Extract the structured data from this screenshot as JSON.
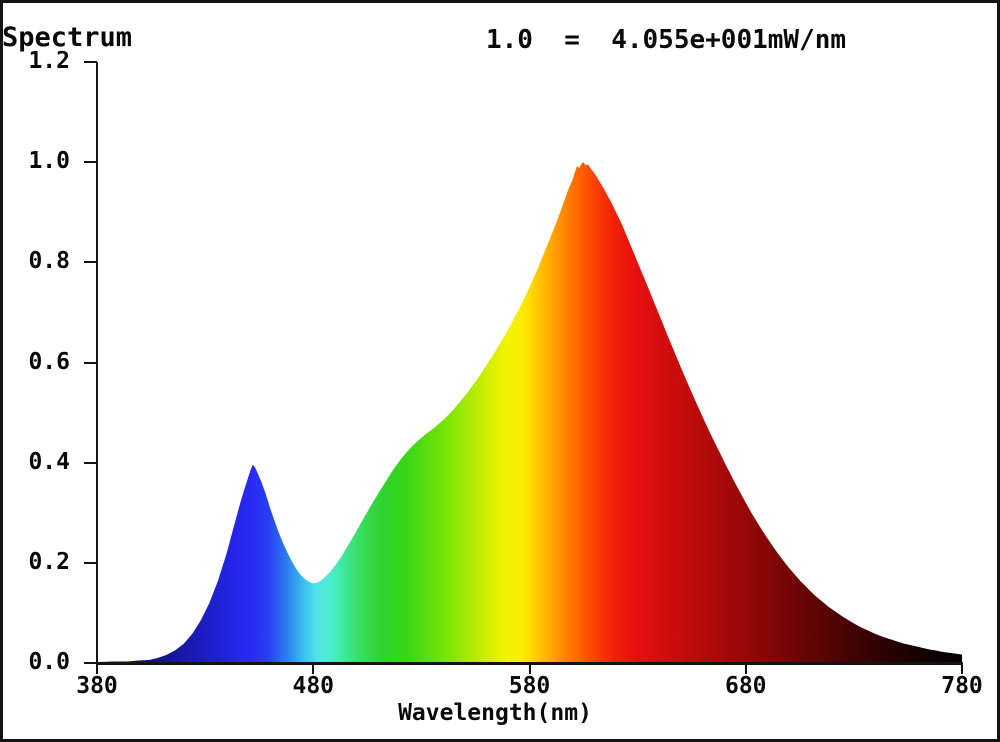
{
  "title": "Spectrum",
  "annotation": "1.0  =  4.055e+001mW/nm",
  "x_axis": {
    "label": "Wavelength(nm)"
  },
  "chart_data": {
    "type": "area",
    "title": "Spectrum",
    "xlabel": "Wavelength(nm)",
    "ylabel": "",
    "annotation": "1.0 = 4.055e+001mW/nm",
    "normalization_mw_per_nm": 40.55,
    "xlim": [
      380,
      780
    ],
    "ylim": [
      0,
      1.2
    ],
    "x_ticks": [
      380,
      480,
      580,
      680,
      780
    ],
    "y_ticks": [
      0,
      0.2,
      0.4,
      0.6,
      0.8,
      1.0,
      1.2
    ],
    "grid": false,
    "legend": false,
    "fill_style": "spectral-gradient-by-wavelength",
    "features": {
      "blue_peak": {
        "wavelength_nm": 451,
        "value": 0.4
      },
      "valley": {
        "wavelength_nm": 479,
        "value": 0.16
      },
      "main_peak": {
        "wavelength_nm": 604,
        "value": 1.0
      }
    },
    "gradient_stops": [
      [
        380,
        "#0b0b55"
      ],
      [
        398,
        "#10106e"
      ],
      [
        412,
        "#15158c"
      ],
      [
        424,
        "#1a1ab2"
      ],
      [
        434,
        "#1f1fd0"
      ],
      [
        444,
        "#2525ea"
      ],
      [
        452,
        "#2a2af4"
      ],
      [
        460,
        "#2842f2"
      ],
      [
        468,
        "#2e80f0"
      ],
      [
        476,
        "#3cc2ee"
      ],
      [
        482,
        "#54e4e8"
      ],
      [
        488,
        "#4aedcb"
      ],
      [
        495,
        "#3fe794"
      ],
      [
        503,
        "#38dc5a"
      ],
      [
        512,
        "#2fd32d"
      ],
      [
        522,
        "#36d617"
      ],
      [
        532,
        "#56dd0e"
      ],
      [
        542,
        "#7de407"
      ],
      [
        552,
        "#a9ea04"
      ],
      [
        562,
        "#d6f002"
      ],
      [
        570,
        "#f2f400"
      ],
      [
        577,
        "#fdea00"
      ],
      [
        584,
        "#ffc800"
      ],
      [
        591,
        "#ffa300"
      ],
      [
        598,
        "#ff7d00"
      ],
      [
        605,
        "#fd5900"
      ],
      [
        612,
        "#f93903"
      ],
      [
        619,
        "#f2200a"
      ],
      [
        627,
        "#e9120e"
      ],
      [
        637,
        "#da0e0e"
      ],
      [
        650,
        "#c60c0c"
      ],
      [
        663,
        "#b10a0a"
      ],
      [
        676,
        "#9c0808"
      ],
      [
        690,
        "#850606"
      ],
      [
        704,
        "#6c0505"
      ],
      [
        718,
        "#540404"
      ],
      [
        732,
        "#3d0303"
      ],
      [
        746,
        "#280202"
      ],
      [
        760,
        "#160101"
      ],
      [
        772,
        "#0b0000"
      ],
      [
        780,
        "#050000"
      ]
    ],
    "points": [
      [
        380,
        0.002
      ],
      [
        388,
        0.003
      ],
      [
        394,
        0.003
      ],
      [
        399,
        0.005
      ],
      [
        404,
        0.006
      ],
      [
        408,
        0.01
      ],
      [
        412,
        0.016
      ],
      [
        416,
        0.025
      ],
      [
        420,
        0.038
      ],
      [
        424,
        0.058
      ],
      [
        428,
        0.085
      ],
      [
        432,
        0.12
      ],
      [
        436,
        0.165
      ],
      [
        440,
        0.22
      ],
      [
        443,
        0.268
      ],
      [
        446,
        0.316
      ],
      [
        448,
        0.345
      ],
      [
        450,
        0.372
      ],
      [
        451,
        0.385
      ],
      [
        452,
        0.396
      ],
      [
        453,
        0.391
      ],
      [
        454,
        0.382
      ],
      [
        456,
        0.362
      ],
      [
        458,
        0.338
      ],
      [
        460,
        0.31
      ],
      [
        462,
        0.285
      ],
      [
        464,
        0.261
      ],
      [
        466,
        0.24
      ],
      [
        468,
        0.221
      ],
      [
        470,
        0.204
      ],
      [
        472,
        0.189
      ],
      [
        474,
        0.177
      ],
      [
        476,
        0.168
      ],
      [
        478,
        0.162
      ],
      [
        480,
        0.159
      ],
      [
        482,
        0.161
      ],
      [
        484,
        0.166
      ],
      [
        486,
        0.174
      ],
      [
        488,
        0.183
      ],
      [
        490,
        0.194
      ],
      [
        493,
        0.213
      ],
      [
        496,
        0.234
      ],
      [
        499,
        0.256
      ],
      [
        502,
        0.279
      ],
      [
        505,
        0.302
      ],
      [
        508,
        0.324
      ],
      [
        511,
        0.345
      ],
      [
        514,
        0.366
      ],
      [
        517,
        0.386
      ],
      [
        520,
        0.404
      ],
      [
        523,
        0.42
      ],
      [
        526,
        0.434
      ],
      [
        529,
        0.446
      ],
      [
        532,
        0.457
      ],
      [
        536,
        0.47
      ],
      [
        540,
        0.485
      ],
      [
        544,
        0.502
      ],
      [
        548,
        0.522
      ],
      [
        552,
        0.544
      ],
      [
        556,
        0.568
      ],
      [
        560,
        0.594
      ],
      [
        564,
        0.621
      ],
      [
        568,
        0.65
      ],
      [
        572,
        0.681
      ],
      [
        576,
        0.714
      ],
      [
        580,
        0.75
      ],
      [
        584,
        0.79
      ],
      [
        588,
        0.832
      ],
      [
        591,
        0.864
      ],
      [
        594,
        0.898
      ],
      [
        596,
        0.922
      ],
      [
        598,
        0.946
      ],
      [
        600,
        0.966
      ],
      [
        601,
        0.98
      ],
      [
        602,
        0.992
      ],
      [
        603,
        0.988
      ],
      [
        604,
        0.997
      ],
      [
        605,
        1.0
      ],
      [
        606,
        0.993
      ],
      [
        607,
        0.996
      ],
      [
        608,
        0.989
      ],
      [
        609,
        0.983
      ],
      [
        610,
        0.978
      ],
      [
        612,
        0.964
      ],
      [
        615,
        0.942
      ],
      [
        618,
        0.918
      ],
      [
        620,
        0.9
      ],
      [
        623,
        0.873
      ],
      [
        625,
        0.852
      ],
      [
        628,
        0.821
      ],
      [
        630,
        0.8
      ],
      [
        633,
        0.769
      ],
      [
        635,
        0.748
      ],
      [
        638,
        0.716
      ],
      [
        640,
        0.695
      ],
      [
        643,
        0.663
      ],
      [
        645,
        0.642
      ],
      [
        648,
        0.611
      ],
      [
        650,
        0.59
      ],
      [
        653,
        0.56
      ],
      [
        655,
        0.54
      ],
      [
        658,
        0.511
      ],
      [
        660,
        0.492
      ],
      [
        663,
        0.464
      ],
      [
        665,
        0.446
      ],
      [
        668,
        0.42
      ],
      [
        670,
        0.402
      ],
      [
        673,
        0.377
      ],
      [
        675,
        0.36
      ],
      [
        678,
        0.336
      ],
      [
        680,
        0.32
      ],
      [
        683,
        0.297
      ],
      [
        685,
        0.283
      ],
      [
        688,
        0.262
      ],
      [
        690,
        0.249
      ],
      [
        693,
        0.23
      ],
      [
        695,
        0.218
      ],
      [
        698,
        0.201
      ],
      [
        700,
        0.19
      ],
      [
        703,
        0.175
      ],
      [
        705,
        0.165
      ],
      [
        708,
        0.152
      ],
      [
        710,
        0.143
      ],
      [
        713,
        0.131
      ],
      [
        715,
        0.124
      ],
      [
        718,
        0.113
      ],
      [
        720,
        0.107
      ],
      [
        723,
        0.098
      ],
      [
        725,
        0.092
      ],
      [
        728,
        0.084
      ],
      [
        730,
        0.079
      ],
      [
        733,
        0.072
      ],
      [
        735,
        0.068
      ],
      [
        738,
        0.062
      ],
      [
        740,
        0.058
      ],
      [
        743,
        0.053
      ],
      [
        745,
        0.05
      ],
      [
        748,
        0.046
      ],
      [
        750,
        0.043
      ],
      [
        753,
        0.039
      ],
      [
        755,
        0.037
      ],
      [
        758,
        0.034
      ],
      [
        760,
        0.032
      ],
      [
        763,
        0.029
      ],
      [
        765,
        0.027
      ],
      [
        768,
        0.025
      ],
      [
        770,
        0.023
      ],
      [
        773,
        0.021
      ],
      [
        775,
        0.02
      ],
      [
        778,
        0.018
      ],
      [
        780,
        0.017
      ]
    ]
  }
}
